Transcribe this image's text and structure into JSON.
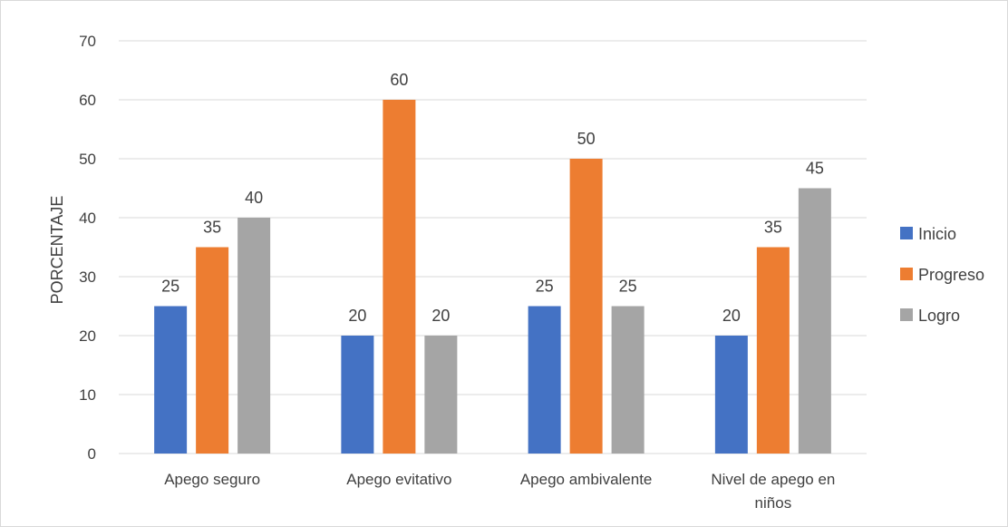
{
  "chart_data": {
    "type": "bar",
    "categories": [
      [
        "Apego seguro"
      ],
      [
        "Apego evitativo"
      ],
      [
        "Apego ambivalente"
      ],
      [
        "Nivel de apego en",
        "niños"
      ]
    ],
    "series": [
      {
        "name": "Inicio",
        "values": [
          25,
          20,
          25,
          20
        ],
        "color": "#4472c4"
      },
      {
        "name": "Progreso",
        "values": [
          35,
          60,
          50,
          35
        ],
        "color": "#ed7d31"
      },
      {
        "name": "Logro",
        "values": [
          40,
          20,
          25,
          45
        ],
        "color": "#a5a5a5"
      }
    ],
    "ylabel": "PORCENTAJE",
    "ylim": [
      0,
      70
    ],
    "yticks": [
      0,
      10,
      20,
      30,
      40,
      50,
      60,
      70
    ],
    "grid": true,
    "legend": "right",
    "gridColor": "#d9d9d9",
    "textColor": "#404040"
  }
}
